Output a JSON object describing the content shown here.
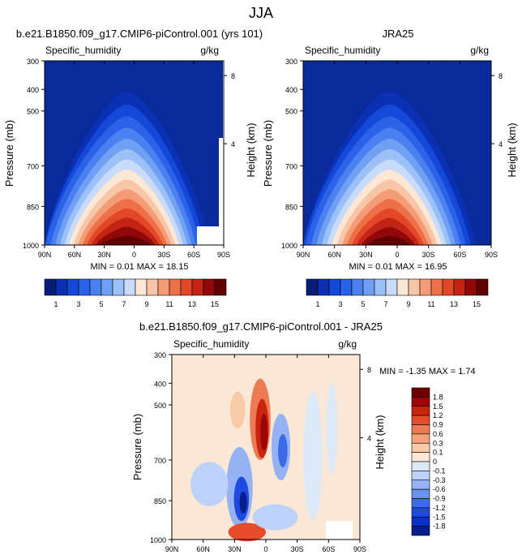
{
  "page_title": "JJA",
  "chart_data": [
    {
      "type": "heatmap",
      "title": "b.e21.B1850.f09_g17.CMIP6-piControl.001 (yrs 101)",
      "left_label": "Specific_humidity",
      "units": "g/kg",
      "ylabel": "Pressure (mb)",
      "ylabel_right": "Height (km)",
      "x_ticks": [
        "90N",
        "60N",
        "30N",
        "0",
        "30S",
        "60S",
        "90S"
      ],
      "y_ticks": [
        "300",
        "400",
        "500",
        "700",
        "850",
        "1000"
      ],
      "height_ticks": [
        "8",
        "4"
      ],
      "min": "0.01",
      "max": "18.15",
      "stats": "MIN =  0.01  MAX =  18.15",
      "levels": [
        1,
        2,
        3,
        4,
        5,
        6,
        7,
        8,
        9,
        10,
        11,
        12,
        13,
        14,
        15
      ],
      "colorbar_labels": [
        "1",
        "3",
        "5",
        "7",
        "9",
        "11",
        "13",
        "15"
      ]
    },
    {
      "type": "heatmap",
      "title": "JRA25",
      "left_label": "Specific_humidity",
      "units": "g/kg",
      "ylabel": "Pressure (mb)",
      "ylabel_right": "Height (km)",
      "x_ticks": [
        "90N",
        "60N",
        "30N",
        "0",
        "30S",
        "60S",
        "90S"
      ],
      "y_ticks": [
        "300",
        "400",
        "500",
        "700",
        "850",
        "1000"
      ],
      "height_ticks": [
        "8",
        "4"
      ],
      "min": "0.01",
      "max": "16.95",
      "stats": "MIN =  0.01  MAX =  16.95",
      "levels": [
        1,
        2,
        3,
        4,
        5,
        6,
        7,
        8,
        9,
        10,
        11,
        12,
        13,
        14,
        15
      ],
      "colorbar_labels": [
        "1",
        "3",
        "5",
        "7",
        "9",
        "11",
        "13",
        "15"
      ]
    },
    {
      "type": "heatmap",
      "title": "b.e21.B1850.f09_g17.CMIP6-piControl.001 - JRA25",
      "left_label": "Specific_humidity",
      "units": "g/kg",
      "ylabel": "Pressure (mb)",
      "ylabel_right": "Height (km)",
      "x_ticks": [
        "90N",
        "60N",
        "30N",
        "0",
        "30S",
        "60S",
        "90S"
      ],
      "y_ticks": [
        "300",
        "400",
        "500",
        "700",
        "850",
        "1000"
      ],
      "height_ticks": [
        "8",
        "4"
      ],
      "min": "-1.35",
      "max": "1.74",
      "stats": "MIN = -1.35  MAX =  1.74",
      "levels": [
        -1.8,
        -1.5,
        -1.2,
        -0.9,
        -0.6,
        -0.3,
        -0.1,
        0,
        0.1,
        0.3,
        0.6,
        0.9,
        1.2,
        1.5,
        1.8
      ],
      "colorbar_labels": [
        "1.8",
        "1.5",
        "1.2",
        "0.9",
        "0.6",
        "0.3",
        "0.1",
        "0",
        "-0.1",
        "-0.3",
        "-0.6",
        "-0.9",
        "-1.2",
        "-1.5",
        "-1.8"
      ]
    }
  ],
  "colors": {
    "humidity_scale": [
      "#061e78",
      "#0a30b4",
      "#1448d8",
      "#2a62e8",
      "#4a80f0",
      "#6fa0f4",
      "#9cc0f8",
      "#c8dcfa",
      "#fde8d6",
      "#f8c6a6",
      "#f49c76",
      "#ee7048",
      "#e24828",
      "#c42414",
      "#900808",
      "#600000"
    ],
    "diff_scale": [
      "#081e8c",
      "#0a30c8",
      "#1e4ae0",
      "#3c6ae8",
      "#6a90f0",
      "#94b2f4",
      "#bcd2f8",
      "#dceaf8",
      "#fbe7d6",
      "#f8caa8",
      "#f4a47c",
      "#ee7a54",
      "#e44c2c",
      "#c8240e",
      "#9c0808",
      "#6e0000"
    ]
  }
}
